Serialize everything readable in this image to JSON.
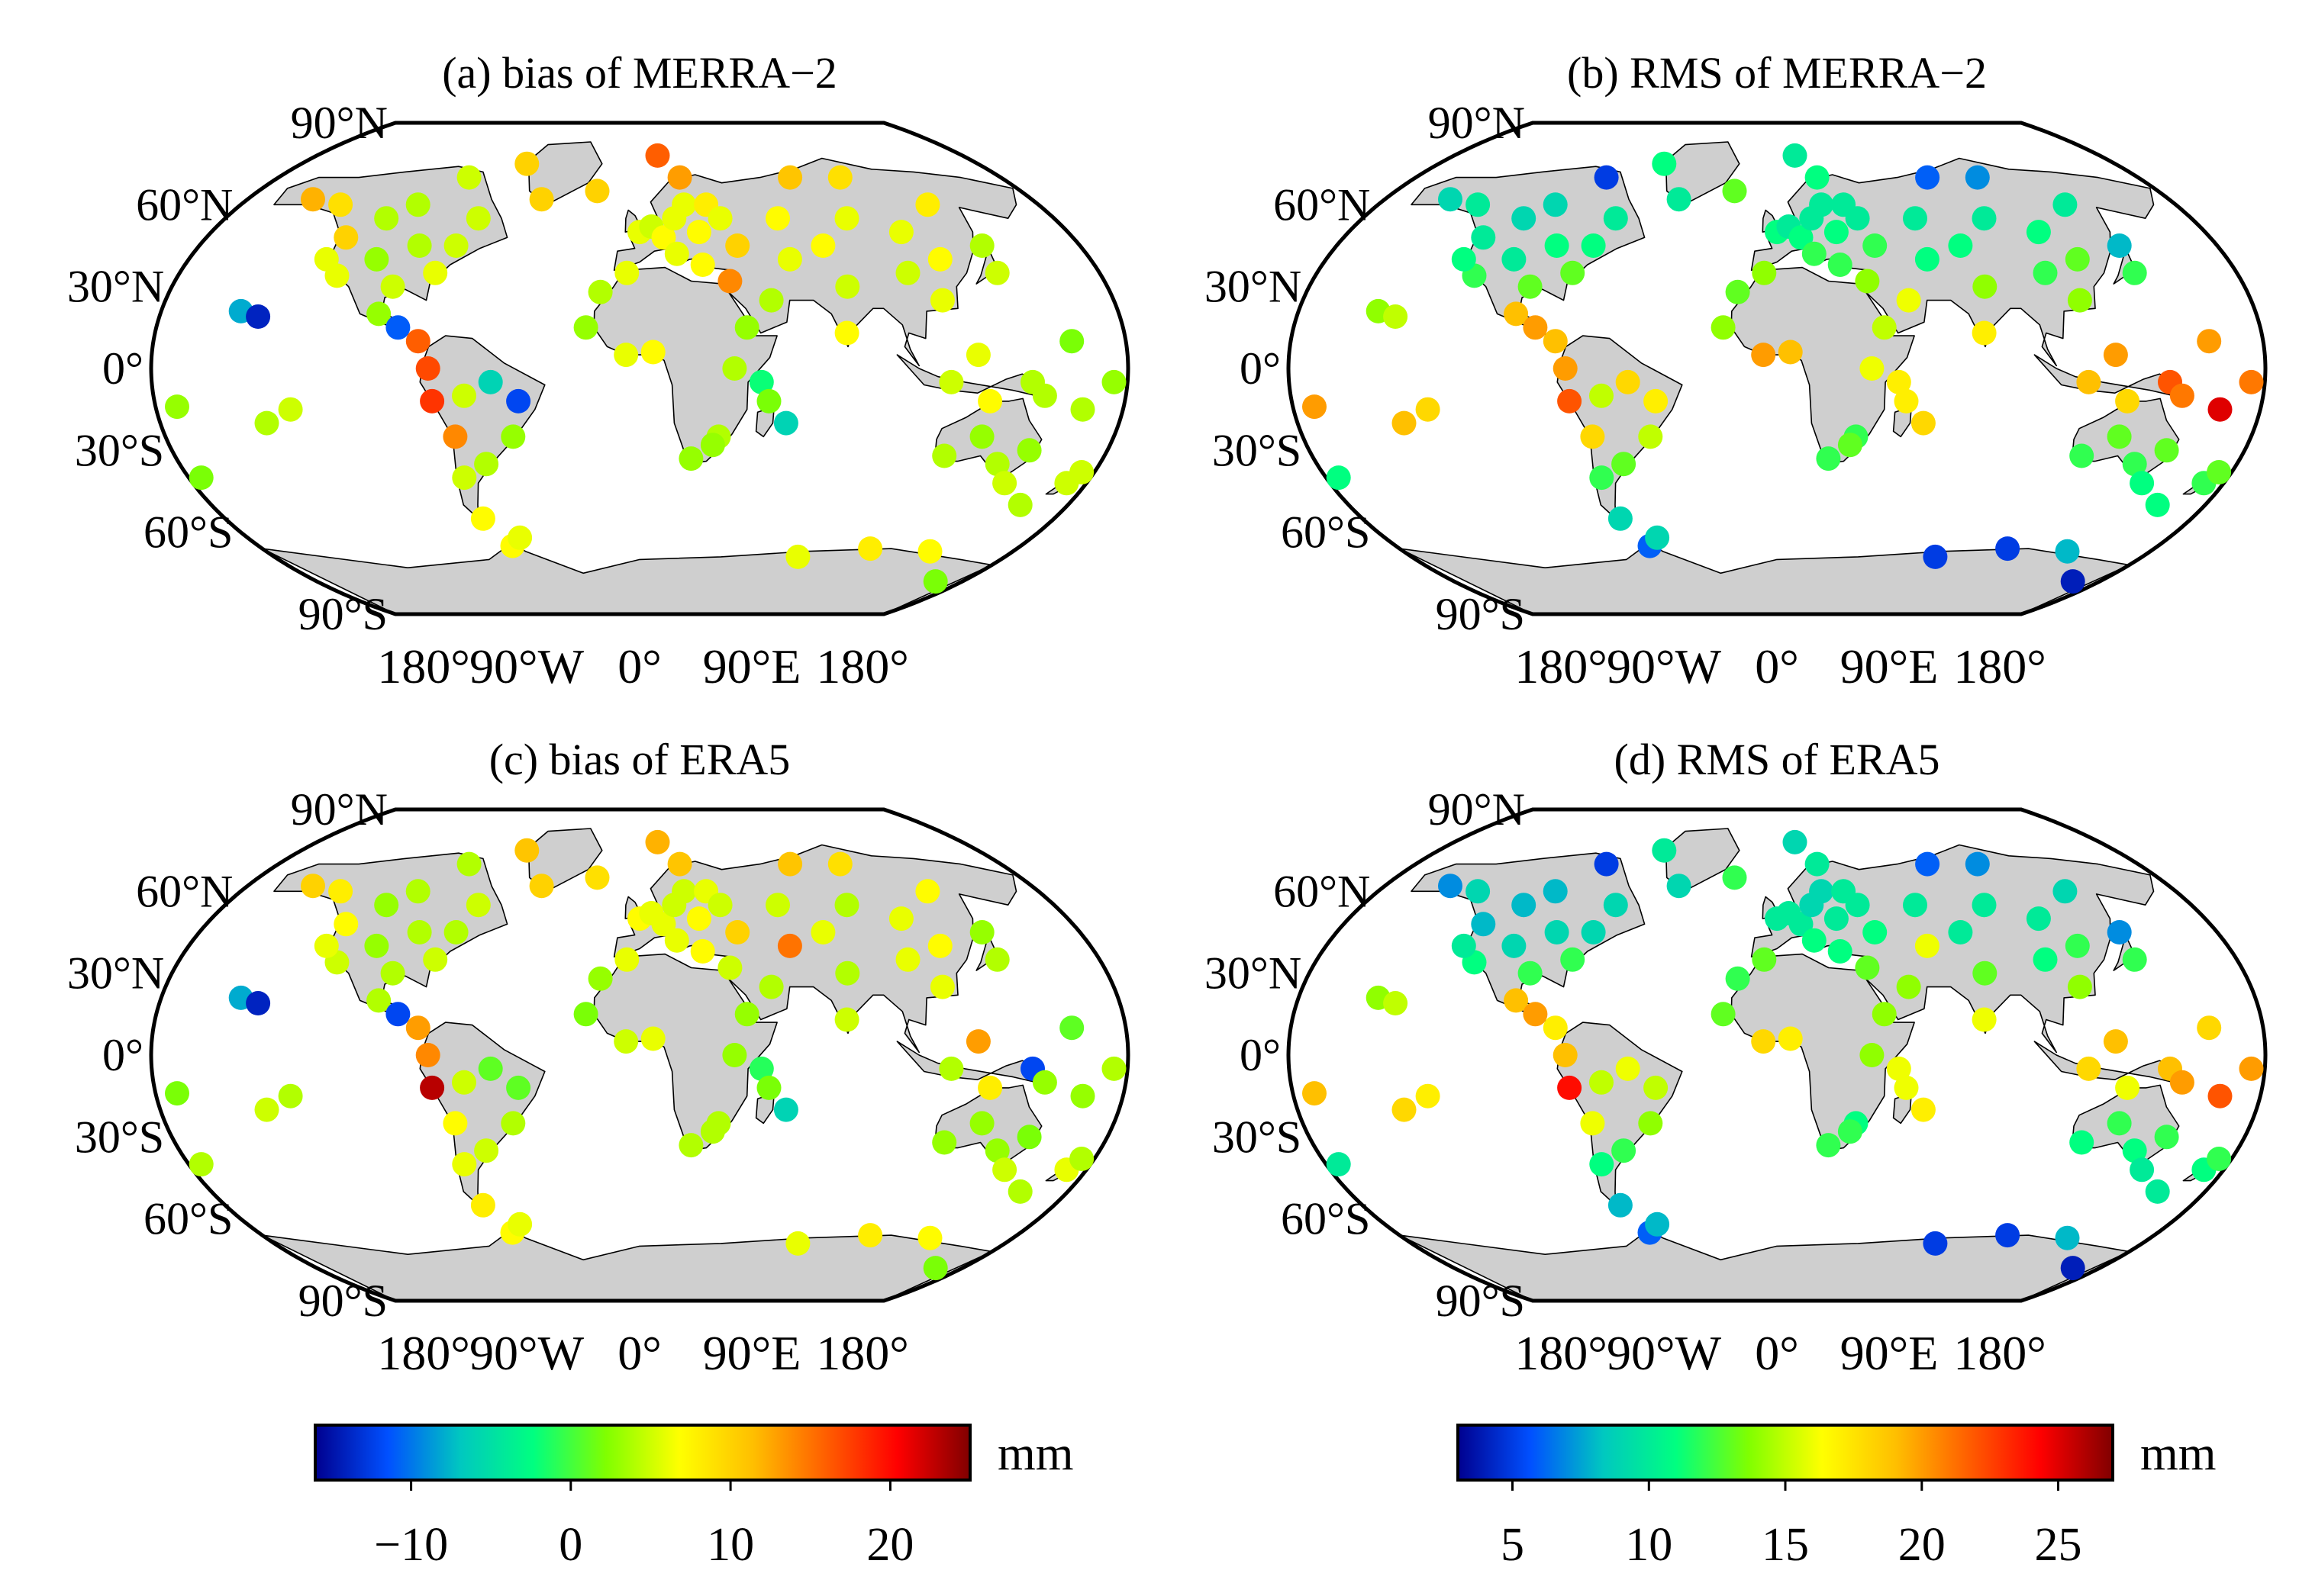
{
  "figure": {
    "panels": [
      {
        "id": "a",
        "title": "(a) bias of MERRA−2",
        "lat_labels": [
          "90°N",
          "60°N",
          "30°N",
          "0°",
          "30°S",
          "60°S",
          "90°S"
        ],
        "lon_labels": [
          "180°",
          "90°W",
          "0°",
          "90°E",
          "180°"
        ],
        "colorbar": "bias"
      },
      {
        "id": "b",
        "title": "(b) RMS of MERRA−2",
        "lat_labels": [
          "90°N",
          "60°N",
          "30°N",
          "0°",
          "30°S",
          "60°S",
          "90°S"
        ],
        "lon_labels": [
          "180°",
          "90°W",
          "0°",
          "90°E",
          "180°"
        ],
        "colorbar": "rms"
      },
      {
        "id": "c",
        "title": "(c) bias of ERA5",
        "lat_labels": [
          "90°N",
          "60°N",
          "30°N",
          "0°",
          "30°S",
          "60°S",
          "90°S"
        ],
        "lon_labels": [
          "180°",
          "90°W",
          "0°",
          "90°E",
          "180°"
        ],
        "colorbar": "bias"
      },
      {
        "id": "d",
        "title": "(d) RMS of ERA5",
        "lat_labels": [
          "90°N",
          "60°N",
          "30°N",
          "0°",
          "30°S",
          "60°S",
          "90°S"
        ],
        "lon_labels": [
          "180°",
          "90°W",
          "0°",
          "90°E",
          "180°"
        ],
        "colorbar": "rms"
      }
    ],
    "colorbars": {
      "bias": {
        "min": -16,
        "max": 25,
        "ticks": [
          "−10",
          "0",
          "10",
          "20"
        ],
        "tick_values": [
          -10,
          0,
          10,
          20
        ],
        "unit": "mm"
      },
      "rms": {
        "min": 3,
        "max": 27,
        "ticks": [
          "5",
          "10",
          "15",
          "20",
          "25"
        ],
        "tick_values": [
          5,
          10,
          15,
          20,
          25
        ],
        "unit": "mm"
      }
    },
    "colors": {
      "land": "#cfcfcf",
      "ocean": "#ffffff",
      "colormap": [
        "#00008f",
        "#0050ff",
        "#00c8c0",
        "#00ff80",
        "#80ff00",
        "#ffff00",
        "#ffc000",
        "#ff6000",
        "#ff0000",
        "#800000"
      ]
    },
    "stations_note": "Station dots: lon/lat in degrees; values in mm (bias panels a,c; RMS panels b,d)"
  },
  "chart_data": {
    "type": "scatter",
    "projection": "robinson-like world map",
    "units": "mm",
    "stations": [
      {
        "lon": -150,
        "lat": 21,
        "a": -8,
        "b": 14,
        "c": -8,
        "d": 14
      },
      {
        "lon": -143,
        "lat": 19,
        "a": -14,
        "b": 15,
        "c": -14,
        "d": 15
      },
      {
        "lon": -122,
        "lat": 48,
        "a": 10,
        "b": 10,
        "c": 7,
        "d": 8
      },
      {
        "lon": -118,
        "lat": 34,
        "a": 6,
        "b": 12,
        "c": 5,
        "d": 11
      },
      {
        "lon": -105,
        "lat": 40,
        "a": 3,
        "b": 10,
        "c": 3,
        "d": 9
      },
      {
        "lon": -95,
        "lat": 30,
        "a": 5,
        "b": 13,
        "c": 4,
        "d": 12
      },
      {
        "lon": -90,
        "lat": 45,
        "a": 4,
        "b": 11,
        "c": 4,
        "d": 9
      },
      {
        "lon": -80,
        "lat": 35,
        "a": 6,
        "b": 13,
        "c": 5,
        "d": 12
      },
      {
        "lon": -75,
        "lat": 45,
        "a": 5,
        "b": 11,
        "c": 4,
        "d": 9
      },
      {
        "lon": -100,
        "lat": 60,
        "a": 4,
        "b": 9,
        "c": 4,
        "d": 8
      },
      {
        "lon": -135,
        "lat": 60,
        "a": 9,
        "b": 10,
        "c": 8,
        "d": 9
      },
      {
        "lon": -150,
        "lat": 62,
        "a": 12,
        "b": 9,
        "c": 10,
        "d": 7
      },
      {
        "lon": -85,
        "lat": 70,
        "a": 5,
        "b": 5,
        "c": 4,
        "d": 5
      },
      {
        "lon": -60,
        "lat": 75,
        "a": 10,
        "b": 11,
        "c": 11,
        "d": 10
      },
      {
        "lon": -45,
        "lat": 62,
        "a": 10,
        "b": 10,
        "c": 10,
        "d": 9
      },
      {
        "lon": -70,
        "lat": 55,
        "a": 5,
        "b": 10,
        "c": 5,
        "d": 9
      },
      {
        "lon": -110,
        "lat": 55,
        "a": 4,
        "b": 9,
        "c": 3,
        "d": 8
      },
      {
        "lon": -125,
        "lat": 40,
        "a": 6,
        "b": 11,
        "c": 6,
        "d": 10
      },
      {
        "lon": -98,
        "lat": 20,
        "a": 3,
        "b": 19,
        "c": 4,
        "d": 19
      },
      {
        "lon": -90,
        "lat": 15,
        "a": -11,
        "b": 20,
        "c": -12,
        "d": 20
      },
      {
        "lon": -82,
        "lat": 10,
        "a": 16,
        "b": 19,
        "c": 13,
        "d": 17
      },
      {
        "lon": -78,
        "lat": 0,
        "a": 17,
        "b": 20,
        "c": 14,
        "d": 19
      },
      {
        "lon": -77,
        "lat": -12,
        "a": 18,
        "b": 22,
        "c": 23,
        "d": 24
      },
      {
        "lon": -70,
        "lat": -25,
        "a": 14,
        "b": 18,
        "c": 7,
        "d": 16
      },
      {
        "lon": -65,
        "lat": -10,
        "a": 5,
        "b": 15,
        "c": 5,
        "d": 15
      },
      {
        "lon": -55,
        "lat": -5,
        "a": -6,
        "b": 18,
        "c": 1,
        "d": 16
      },
      {
        "lon": -45,
        "lat": -12,
        "a": -12,
        "b": 17,
        "c": 1,
        "d": 15
      },
      {
        "lon": -48,
        "lat": -25,
        "a": 3,
        "b": 15,
        "c": 4,
        "d": 14
      },
      {
        "lon": -60,
        "lat": -35,
        "a": 4,
        "b": 13,
        "c": 5,
        "d": 12
      },
      {
        "lon": -70,
        "lat": -40,
        "a": 5,
        "b": 12,
        "c": 6,
        "d": 11
      },
      {
        "lon": -68,
        "lat": -55,
        "a": 7,
        "b": 9,
        "c": 8,
        "d": 8
      },
      {
        "lon": -60,
        "lat": -65,
        "a": 7,
        "b": 6,
        "c": 7,
        "d": 6
      },
      {
        "lon": -55,
        "lat": -62,
        "a": 6,
        "b": 9,
        "c": 6,
        "d": 8
      },
      {
        "lon": -130,
        "lat": -15,
        "a": 5,
        "b": 18,
        "c": 4,
        "d": 17
      },
      {
        "lon": -140,
        "lat": -20,
        "a": 4,
        "b": 19,
        "c": 5,
        "d": 18
      },
      {
        "lon": -172,
        "lat": -14,
        "a": 3,
        "b": 20,
        "c": 2,
        "d": 19
      },
      {
        "lon": -175,
        "lat": -40,
        "a": 2,
        "b": 11,
        "c": 4,
        "d": 10
      },
      {
        "lon": -20,
        "lat": 65,
        "a": 10,
        "b": 13,
        "c": 9,
        "d": 12
      },
      {
        "lon": -15,
        "lat": 28,
        "a": 4,
        "b": 13,
        "c": 3,
        "d": 12
      },
      {
        "lon": -20,
        "lat": 15,
        "a": 3,
        "b": 14,
        "c": 2,
        "d": 13
      },
      {
        "lon": -5,
        "lat": 35,
        "a": 6,
        "b": 14,
        "c": 6,
        "d": 13
      },
      {
        "lon": 0,
        "lat": 50,
        "a": 6,
        "b": 11,
        "c": 7,
        "d": 10
      },
      {
        "lon": 5,
        "lat": 52,
        "a": 5,
        "b": 10,
        "c": 6,
        "d": 10
      },
      {
        "lon": 10,
        "lat": 48,
        "a": 7,
        "b": 11,
        "c": 6,
        "d": 10
      },
      {
        "lon": 15,
        "lat": 55,
        "a": 6,
        "b": 10,
        "c": 5,
        "d": 9
      },
      {
        "lon": 20,
        "lat": 60,
        "a": 6,
        "b": 10,
        "c": 5,
        "d": 9
      },
      {
        "lon": 25,
        "lat": 50,
        "a": 7,
        "b": 11,
        "c": 7,
        "d": 10
      },
      {
        "lon": 30,
        "lat": 60,
        "a": 8,
        "b": 10,
        "c": 6,
        "d": 10
      },
      {
        "lon": 35,
        "lat": 55,
        "a": 6,
        "b": 10,
        "c": 5,
        "d": 10
      },
      {
        "lon": 40,
        "lat": 45,
        "a": 10,
        "b": 12,
        "c": 10,
        "d": 11
      },
      {
        "lon": 15,
        "lat": 42,
        "a": 6,
        "b": 12,
        "c": 6,
        "d": 11
      },
      {
        "lon": 25,
        "lat": 38,
        "a": 7,
        "b": 12,
        "c": 7,
        "d": 11
      },
      {
        "lon": 35,
        "lat": 32,
        "a": 14,
        "b": 14,
        "c": 5,
        "d": 13
      },
      {
        "lon": 20,
        "lat": 70,
        "a": 13,
        "b": 11,
        "c": 11,
        "d": 10
      },
      {
        "lon": 10,
        "lat": 78,
        "a": 16,
        "b": 10,
        "c": 12,
        "d": 9
      },
      {
        "lon": -5,
        "lat": 5,
        "a": 6,
        "b": 20,
        "c": 5,
        "d": 18
      },
      {
        "lon": 5,
        "lat": 6,
        "a": 7,
        "b": 19,
        "c": 6,
        "d": 17
      },
      {
        "lon": 35,
        "lat": 0,
        "a": 4,
        "b": 16,
        "c": 3,
        "d": 14
      },
      {
        "lon": 30,
        "lat": -25,
        "a": 4,
        "b": 12,
        "c": 4,
        "d": 11
      },
      {
        "lon": 20,
        "lat": -33,
        "a": 3,
        "b": 12,
        "c": 4,
        "d": 12
      },
      {
        "lon": 28,
        "lat": -28,
        "a": 3,
        "b": 13,
        "c": 4,
        "d": 12
      },
      {
        "lon": 45,
        "lat": -5,
        "a": -2,
        "b": 17,
        "c": -1,
        "d": 16
      },
      {
        "lon": 55,
        "lat": -20,
        "a": -6,
        "b": 18,
        "c": -6,
        "d": 17
      },
      {
        "lon": 48,
        "lat": -12,
        "a": 2,
        "b": 17,
        "c": 2,
        "d": 16
      },
      {
        "lon": 40,
        "lat": 15,
        "a": 3,
        "b": 15,
        "c": 3,
        "d": 14
      },
      {
        "lon": 50,
        "lat": 25,
        "a": 4,
        "b": 16,
        "c": 4,
        "d": 14
      },
      {
        "lon": 60,
        "lat": 40,
        "a": 6,
        "b": 11,
        "c": 15,
        "d": 16
      },
      {
        "lon": 60,
        "lat": 55,
        "a": 7,
        "b": 10,
        "c": 5,
        "d": 10
      },
      {
        "lon": 75,
        "lat": 70,
        "a": 11,
        "b": 6,
        "c": 11,
        "d": 6
      },
      {
        "lon": 75,
        "lat": 45,
        "a": 7,
        "b": 11,
        "c": 6,
        "d": 10
      },
      {
        "lon": 90,
        "lat": 55,
        "a": 6,
        "b": 10,
        "c": 4,
        "d": 10
      },
      {
        "lon": 80,
        "lat": 30,
        "a": 5,
        "b": 14,
        "c": 4,
        "d": 13
      },
      {
        "lon": 77,
        "lat": 13,
        "a": 7,
        "b": 17,
        "c": 5,
        "d": 16
      },
      {
        "lon": 100,
        "lat": 70,
        "a": 9,
        "b": 7,
        "c": 9,
        "d": 7
      },
      {
        "lon": 110,
        "lat": 50,
        "a": 6,
        "b": 11,
        "c": 6,
        "d": 10
      },
      {
        "lon": 105,
        "lat": 35,
        "a": 5,
        "b": 12,
        "c": 6,
        "d": 11
      },
      {
        "lon": 115,
        "lat": 25,
        "a": 6,
        "b": 14,
        "c": 6,
        "d": 14
      },
      {
        "lon": 120,
        "lat": 40,
        "a": 7,
        "b": 13,
        "c": 7,
        "d": 12
      },
      {
        "lon": 130,
        "lat": 60,
        "a": 8,
        "b": 10,
        "c": 7,
        "d": 9
      },
      {
        "lon": 140,
        "lat": 45,
        "a": 4,
        "b": 8,
        "c": 3,
        "d": 7
      },
      {
        "lon": 140,
        "lat": 35,
        "a": 5,
        "b": 12,
        "c": 4,
        "d": 12
      },
      {
        "lon": 125,
        "lat": 5,
        "a": 6,
        "b": 20,
        "c": 13,
        "d": 19
      },
      {
        "lon": 115,
        "lat": -5,
        "a": 5,
        "b": 19,
        "c": 4,
        "d": 18
      },
      {
        "lon": 130,
        "lat": -12,
        "a": 7,
        "b": 18,
        "c": 8,
        "d": 16
      },
      {
        "lon": 145,
        "lat": -5,
        "a": 4,
        "b": 22,
        "c": -12,
        "d": 19
      },
      {
        "lon": 150,
        "lat": -10,
        "a": 4,
        "b": 21,
        "c": 3,
        "d": 20
      },
      {
        "lon": 165,
        "lat": -15,
        "a": 4,
        "b": 25,
        "c": 3,
        "d": 22
      },
      {
        "lon": 175,
        "lat": -5,
        "a": 3,
        "b": 21,
        "c": 4,
        "d": 20
      },
      {
        "lon": 160,
        "lat": 10,
        "a": 2,
        "b": 20,
        "c": 1,
        "d": 18
      },
      {
        "lon": 118,
        "lat": -32,
        "a": 4,
        "b": 12,
        "c": 3,
        "d": 11
      },
      {
        "lon": 130,
        "lat": -25,
        "a": 3,
        "b": 13,
        "c": 3,
        "d": 12
      },
      {
        "lon": 140,
        "lat": -35,
        "a": 4,
        "b": 12,
        "c": 3,
        "d": 11
      },
      {
        "lon": 150,
        "lat": -30,
        "a": 3,
        "b": 13,
        "c": 2,
        "d": 12
      },
      {
        "lon": 147,
        "lat": -42,
        "a": 5,
        "b": 11,
        "c": 5,
        "d": 10
      },
      {
        "lon": 172,
        "lat": -42,
        "a": 5,
        "b": 12,
        "c": 6,
        "d": 11
      },
      {
        "lon": 175,
        "lat": -38,
        "a": 5,
        "b": 13,
        "c": 4,
        "d": 12
      },
      {
        "lon": 160,
        "lat": -50,
        "a": 4,
        "b": 11,
        "c": 4,
        "d": 10
      },
      {
        "lon": 78,
        "lat": -69,
        "a": 6,
        "b": 5,
        "c": 6,
        "d": 5
      },
      {
        "lon": 110,
        "lat": -66,
        "a": 8,
        "b": 5,
        "c": 8,
        "d": 5
      },
      {
        "lon": 140,
        "lat": -67,
        "a": 7,
        "b": 8,
        "c": 7,
        "d": 8
      },
      {
        "lon": 165,
        "lat": -78,
        "a": 2,
        "b": 4,
        "c": 2,
        "d": 4
      }
    ]
  }
}
